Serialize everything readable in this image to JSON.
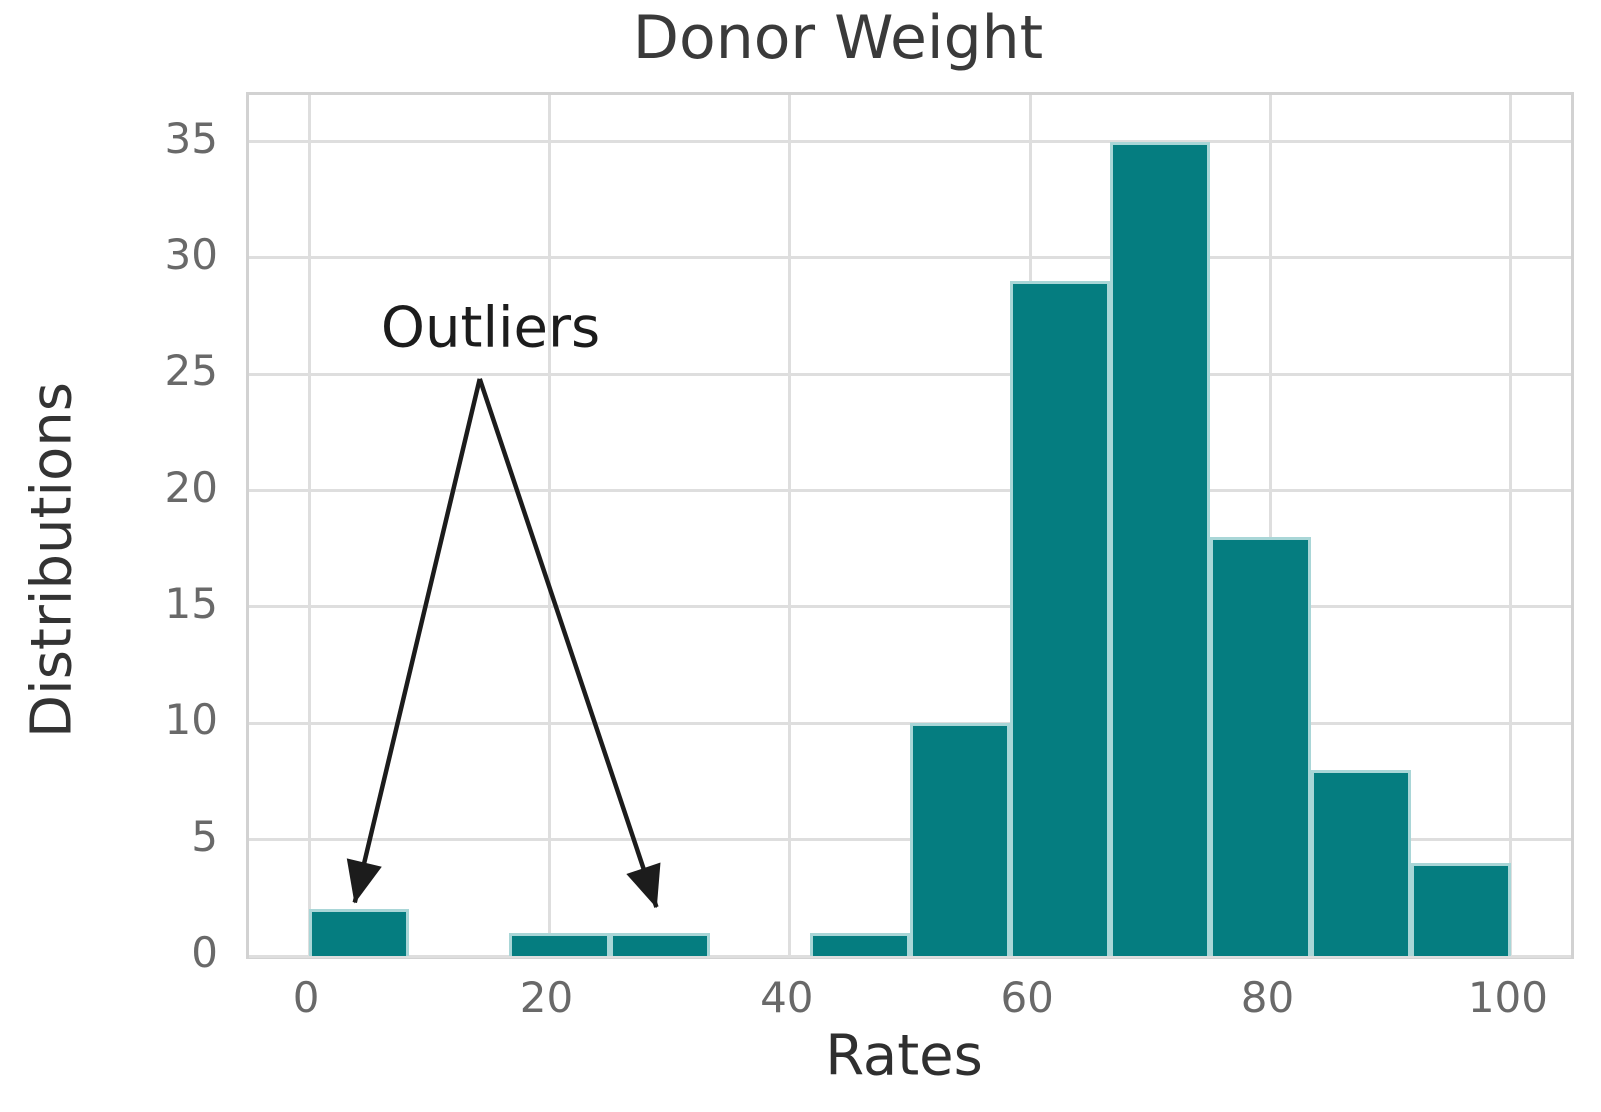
{
  "chart_data": {
    "type": "bar",
    "subtype": "histogram",
    "title": "Donor Weight",
    "xlabel": "Rates",
    "ylabel": "Distributions",
    "bin_edges": [
      0,
      8.33,
      16.67,
      25,
      33.33,
      41.67,
      50,
      58.33,
      66.67,
      75,
      83.33,
      91.67,
      100
    ],
    "counts": [
      2,
      0,
      1,
      1,
      0,
      1,
      10,
      29,
      35,
      18,
      8,
      4
    ],
    "x_ticks": [
      0,
      20,
      40,
      60,
      80,
      100
    ],
    "y_ticks": [
      0,
      5,
      10,
      15,
      20,
      25,
      30,
      35
    ],
    "xlim": [
      -5,
      105
    ],
    "ylim": [
      0,
      37
    ],
    "grid": true,
    "legend": "none",
    "bar_color": "#057d80",
    "bar_edge_color": "#a9d6d7",
    "grid_color": "#dedede",
    "annotation": {
      "text": "Outliers",
      "text_pos": [
        15.1,
        27.0
      ],
      "arrow_apex": [
        14.2,
        24.8
      ],
      "arrow_targets": [
        [
          3.8,
          2.3
        ],
        [
          28.9,
          2.1
        ]
      ],
      "arrow_color": "#1c1c1c"
    }
  }
}
